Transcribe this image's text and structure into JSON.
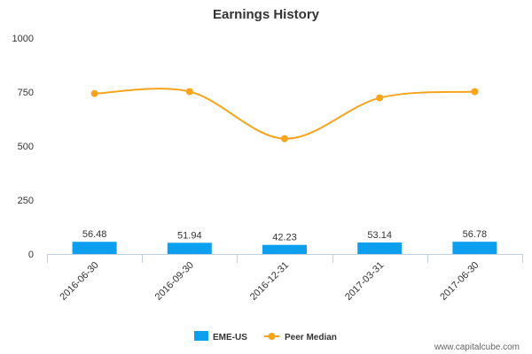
{
  "chart_data": {
    "type": "bar",
    "title": "Earnings History",
    "xlabel": "",
    "ylabel": "",
    "categories": [
      "2016-06-30",
      "2016-09-30",
      "2016-12-31",
      "2017-03-31",
      "2017-06-30"
    ],
    "ylim": [
      0,
      1000
    ],
    "yticks": [
      0,
      250,
      500,
      750,
      1000
    ],
    "series": [
      {
        "name": "EME-US",
        "type": "bar",
        "values": [
          56.48,
          51.94,
          42.23,
          53.14,
          56.78
        ],
        "labels": [
          "56.48",
          "51.94",
          "42.23",
          "53.14",
          "56.78"
        ],
        "color": "#0c9ff0"
      },
      {
        "name": "Peer Median",
        "type": "line",
        "values": [
          743,
          752,
          534,
          723,
          752
        ],
        "color": "#f5a41c"
      }
    ],
    "grid": false,
    "legend": "bottom"
  },
  "credit": "www.capitalcube.com"
}
